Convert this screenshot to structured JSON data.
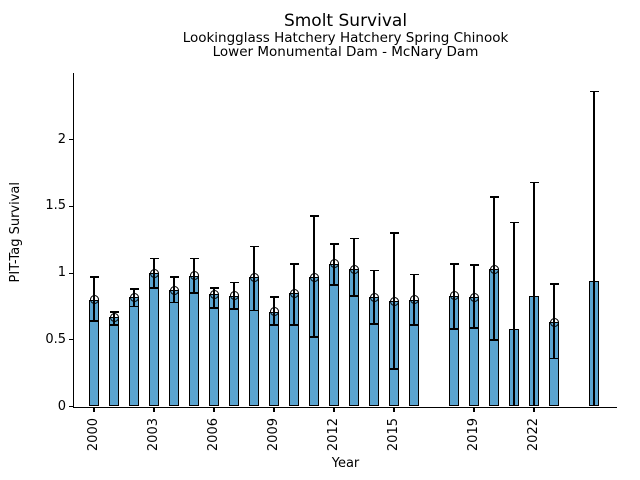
{
  "figure": {
    "title": "Smolt Survival",
    "subtitle_line1": "Lookingglass Hatchery Hatchery Spring Chinook",
    "subtitle_line2": "Lower Monumental Dam - McNary Dam"
  },
  "chart_data": {
    "type": "bar",
    "title": "Smolt Survival",
    "subtitle": [
      "Lookingglass Hatchery Hatchery Spring Chinook",
      "Lower Monumental Dam - McNary Dam"
    ],
    "xlabel": "Year",
    "ylabel": "PIT-Tag Survival",
    "xlim": [
      1999,
      2026.15
    ],
    "ylim": [
      0,
      2.5
    ],
    "yticks": [
      0,
      0.5,
      1,
      1.5,
      2
    ],
    "ytick_labels": [
      "0",
      "0.5",
      "1",
      "1.5",
      "2"
    ],
    "xticks": [
      2000,
      2003,
      2006,
      2009,
      2012,
      2015,
      2019,
      2022
    ],
    "grid": false,
    "legend": null,
    "bar_color": "#5BA4D0",
    "bar_edge_color": "#000000",
    "error_color": "#000000",
    "series": [
      {
        "name": "PIT-Tag Survival",
        "points": [
          {
            "year": 2000,
            "value": 0.8,
            "ci_low": 0.64,
            "ci_high": 0.97,
            "marker": true
          },
          {
            "year": 2001,
            "value": 0.67,
            "ci_low": 0.61,
            "ci_high": 0.71,
            "marker": true
          },
          {
            "year": 2002,
            "value": 0.82,
            "ci_low": 0.75,
            "ci_high": 0.88,
            "marker": true
          },
          {
            "year": 2003,
            "value": 1.0,
            "ci_low": 0.89,
            "ci_high": 1.11,
            "marker": true
          },
          {
            "year": 2004,
            "value": 0.87,
            "ci_low": 0.78,
            "ci_high": 0.97,
            "marker": true
          },
          {
            "year": 2005,
            "value": 0.98,
            "ci_low": 0.85,
            "ci_high": 1.11,
            "marker": true
          },
          {
            "year": 2006,
            "value": 0.84,
            "ci_low": 0.74,
            "ci_high": 0.89,
            "marker": true
          },
          {
            "year": 2007,
            "value": 0.83,
            "ci_low": 0.73,
            "ci_high": 0.93,
            "marker": true
          },
          {
            "year": 2008,
            "value": 0.97,
            "ci_low": 0.72,
            "ci_high": 1.2,
            "marker": true
          },
          {
            "year": 2009,
            "value": 0.71,
            "ci_low": 0.61,
            "ci_high": 0.82,
            "marker": true
          },
          {
            "year": 2010,
            "value": 0.85,
            "ci_low": 0.61,
            "ci_high": 1.07,
            "marker": true
          },
          {
            "year": 2011,
            "value": 0.97,
            "ci_low": 0.52,
            "ci_high": 1.43,
            "marker": true
          },
          {
            "year": 2012,
            "value": 1.07,
            "ci_low": 0.91,
            "ci_high": 1.22,
            "marker": true
          },
          {
            "year": 2013,
            "value": 1.03,
            "ci_low": 0.83,
            "ci_high": 1.26,
            "marker": true
          },
          {
            "year": 2014,
            "value": 0.82,
            "ci_low": 0.62,
            "ci_high": 1.02,
            "marker": true
          },
          {
            "year": 2015,
            "value": 0.79,
            "ci_low": 0.28,
            "ci_high": 1.3,
            "marker": true
          },
          {
            "year": 2016,
            "value": 0.8,
            "ci_low": 0.61,
            "ci_high": 0.99,
            "marker": true
          },
          {
            "year": 2018,
            "value": 0.83,
            "ci_low": 0.58,
            "ci_high": 1.07,
            "marker": true
          },
          {
            "year": 2019,
            "value": 0.82,
            "ci_low": 0.59,
            "ci_high": 1.06,
            "marker": true
          },
          {
            "year": 2020,
            "value": 1.03,
            "ci_low": 0.5,
            "ci_high": 1.57,
            "marker": true
          },
          {
            "year": 2021,
            "value": 0.58,
            "ci_low": 0.01,
            "ci_high": 1.38,
            "marker": false
          },
          {
            "year": 2022,
            "value": 0.83,
            "ci_low": 0.01,
            "ci_high": 1.68,
            "marker": false
          },
          {
            "year": 2023,
            "value": 0.63,
            "ci_low": 0.36,
            "ci_high": 0.92,
            "marker": true
          },
          {
            "year": 2025,
            "value": 0.94,
            "ci_low": 0.01,
            "ci_high": 2.36,
            "marker": false
          }
        ]
      }
    ]
  }
}
